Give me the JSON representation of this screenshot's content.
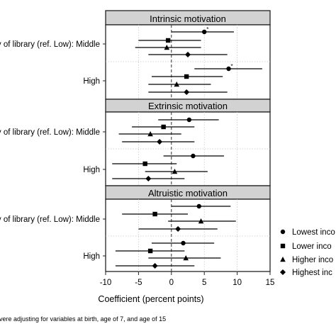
{
  "chart_data": {
    "type": "scatter",
    "subtype": "coefficient-plot",
    "xlabel": "Coefficient (percent points)",
    "xlim": [
      -10,
      15
    ],
    "x_ticks": [
      -10,
      -5,
      0,
      5,
      10,
      15
    ],
    "reference_line": 0,
    "grid": "dotted",
    "row_labels": {
      "middle": "y of library (ref. Low): Middle",
      "high": "High"
    },
    "legend_placement": "right",
    "series": [
      {
        "name": "Lowest inco",
        "marker": "circle"
      },
      {
        "name": "Lower inco",
        "marker": "square"
      },
      {
        "name": "Higher inco",
        "marker": "triangle"
      },
      {
        "name": "Highest inc",
        "marker": "diamond"
      }
    ],
    "panels": [
      {
        "title": "Intrinsic motivation",
        "rows": [
          {
            "label": "middle",
            "estimates": [
              {
                "series": 0,
                "value": 5.0,
                "ci": [
                  0.0,
                  9.5
                ],
                "significance": "*"
              },
              {
                "series": 1,
                "value": -0.5,
                "ci": [
                  -5.0,
                  4.5
                ]
              },
              {
                "series": 2,
                "value": -0.7,
                "ci": [
                  -5.5,
                  4.5
                ]
              },
              {
                "series": 3,
                "value": 2.5,
                "ci": [
                  -3.5,
                  8.5
                ]
              }
            ]
          },
          {
            "label": "high",
            "estimates": [
              {
                "series": 0,
                "value": 8.7,
                "ci": [
                  3.5,
                  13.8
                ],
                "significance": "*"
              },
              {
                "series": 1,
                "value": 2.3,
                "ci": [
                  -3.0,
                  7.8
                ]
              },
              {
                "series": 2,
                "value": 0.8,
                "ci": [
                  -3.5,
                  6.0
                ]
              },
              {
                "series": 3,
                "value": 2.3,
                "ci": [
                  -3.5,
                  8.5
                ]
              }
            ]
          }
        ]
      },
      {
        "title": "Extrinsic motivation",
        "rows": [
          {
            "label": "middle",
            "estimates": [
              {
                "series": 0,
                "value": 2.7,
                "ci": [
                  -2.0,
                  7.2
                ]
              },
              {
                "series": 1,
                "value": -1.2,
                "ci": [
                  -6.0,
                  3.5
                ]
              },
              {
                "series": 2,
                "value": -3.2,
                "ci": [
                  -8.0,
                  1.5
                ]
              },
              {
                "series": 3,
                "value": -1.8,
                "ci": [
                  -7.5,
                  3.5
                ]
              }
            ]
          },
          {
            "label": "high",
            "estimates": [
              {
                "series": 0,
                "value": 3.3,
                "ci": [
                  -1.2,
                  8.0
                ]
              },
              {
                "series": 1,
                "value": -4.0,
                "ci": [
                  -9.0,
                  0.8
                ]
              },
              {
                "series": 2,
                "value": 0.5,
                "ci": [
                  -4.0,
                  5.5
                ]
              },
              {
                "series": 3,
                "value": -3.5,
                "ci": [
                  -9.0,
                  2.0
                ]
              }
            ]
          }
        ]
      },
      {
        "title": "Altruistic motivation",
        "rows": [
          {
            "label": "middle",
            "estimates": [
              {
                "series": 0,
                "value": 4.2,
                "ci": [
                  0.0,
                  9.0
                ]
              },
              {
                "series": 1,
                "value": -2.5,
                "ci": [
                  -7.5,
                  2.5
                ]
              },
              {
                "series": 2,
                "value": 4.5,
                "ci": [
                  -0.5,
                  9.8
                ]
              },
              {
                "series": 3,
                "value": 1.0,
                "ci": [
                  -5.0,
                  7.0
                ]
              }
            ]
          },
          {
            "label": "high",
            "estimates": [
              {
                "series": 0,
                "value": 1.8,
                "ci": [
                  -3.0,
                  6.5
                ]
              },
              {
                "series": 1,
                "value": -3.2,
                "ci": [
                  -8.5,
                  2.0
                ]
              },
              {
                "series": 2,
                "value": 2.2,
                "ci": [
                  -3.5,
                  7.5
                ]
              },
              {
                "series": 3,
                "value": -2.5,
                "ci": [
                  -8.5,
                  3.5
                ]
              }
            ]
          }
        ]
      }
    ],
    "footnote": "vere adjusting for variables at birth, age of 7, and age of 15"
  }
}
